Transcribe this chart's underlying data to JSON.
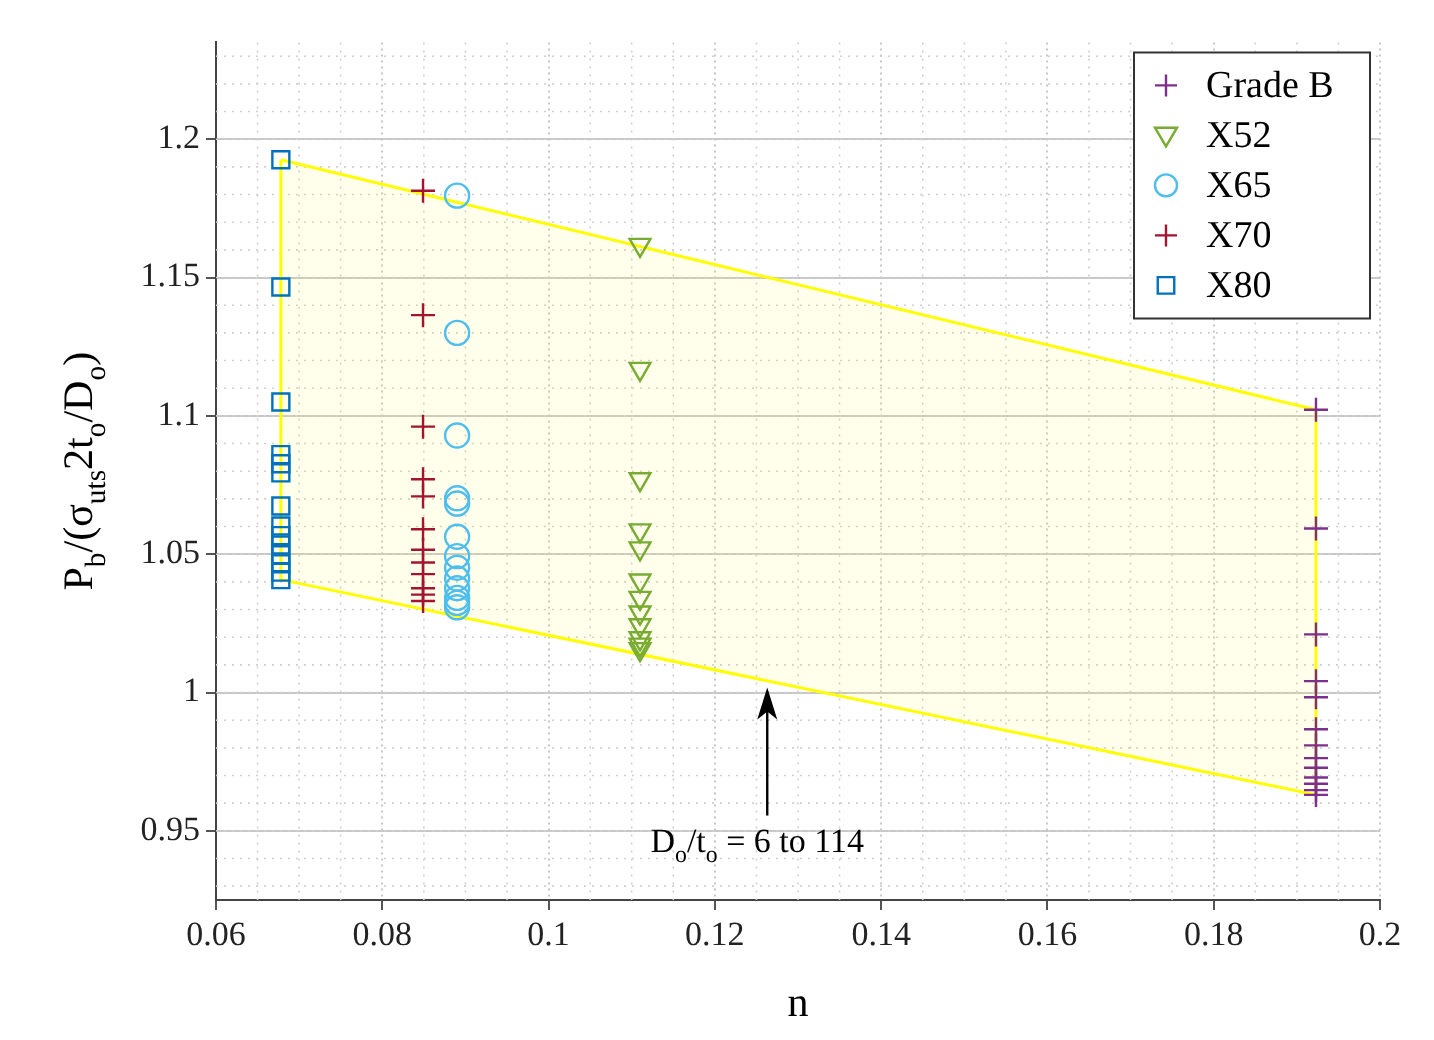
{
  "chart_data": {
    "type": "scatter",
    "xlabel": "n",
    "ylabel": "P$_{b}$/(σ$_{uts}$2t$_{o}$/D$_{o}$)",
    "xlim": [
      0.06,
      0.2
    ],
    "xticks": [
      0.06,
      0.08,
      0.1,
      0.12,
      0.14,
      0.16,
      0.18,
      0.2
    ],
    "ylim": [
      0.925,
      1.235
    ],
    "yticks": [
      0.95,
      1,
      1.05,
      1.1,
      1.15,
      1.2
    ],
    "grid": true,
    "legend": "top right",
    "annotations": [
      {
        "text": "D$_{o}$/t$_{o}$ = 6 to 114",
        "x": 0.1263,
        "y": 1.0018
      }
    ],
    "series": [
      {
        "type": "area",
        "color": "#ffff00",
        "x": [
          0.0678,
          0.1923,
          0.1923,
          0.0678,
          0.0678
        ],
        "values": [
          1.1926,
          1.1022,
          0.963,
          1.0408,
          1.1926
        ]
      },
      {
        "name": "Grade B",
        "color": "#7e2f8e",
        "marker": "cross",
        "x": [
          0.1923,
          0.1923,
          0.1923,
          0.1923,
          0.1923,
          0.1923,
          0.1923,
          0.1923,
          0.1923,
          0.1923,
          0.1923,
          0.1923,
          0.1923
        ],
        "values": [
          1.1022,
          1.0593,
          1.021,
          1.0041,
          0.9983,
          0.9867,
          0.9809,
          0.9763,
          0.9728,
          0.9693,
          0.967,
          0.9647,
          0.963
        ]
      },
      {
        "name": "X52",
        "color": "#77ac30",
        "marker": "triangle",
        "x": [
          0.111,
          0.111,
          0.111,
          0.111,
          0.111,
          0.111,
          0.111,
          0.111,
          0.111,
          0.111,
          0.111,
          0.111
        ],
        "values": [
          1.1618,
          1.117,
          1.0771,
          1.0586,
          1.0521,
          1.0405,
          1.0342,
          1.0289,
          1.0243,
          1.0196,
          1.0173,
          1.0157
        ]
      },
      {
        "name": "X65",
        "color": "#4dbeee",
        "marker": "circle",
        "x": [
          0.089,
          0.089,
          0.089,
          0.089,
          0.089,
          0.089,
          0.089,
          0.089,
          0.089,
          0.089,
          0.089,
          0.089,
          0.089
        ],
        "values": [
          1.1796,
          1.13,
          1.0929,
          1.0702,
          1.0683,
          1.0563,
          1.0493,
          1.0451,
          1.0412,
          1.0377,
          1.0342,
          1.0324,
          1.0308
        ]
      },
      {
        "name": "X70",
        "color": "#a2142f",
        "marker": "cross",
        "x": [
          0.0849,
          0.0849,
          0.0849,
          0.0849,
          0.0849,
          0.0849,
          0.0849,
          0.0849,
          0.0849,
          0.0849,
          0.0849,
          0.0849
        ],
        "values": [
          1.1814,
          1.1364,
          1.0961,
          1.0771,
          1.0709,
          1.059,
          1.0516,
          1.047,
          1.0428,
          1.0377,
          1.0354,
          1.0331
        ]
      },
      {
        "name": "X80",
        "color": "#0072bd",
        "marker": "square",
        "x": [
          0.0678,
          0.0678,
          0.0678,
          0.0678,
          0.0678,
          0.0678,
          0.0678,
          0.0678,
          0.0678,
          0.0678,
          0.0678,
          0.0678,
          0.0678,
          0.0678
        ],
        "values": [
          1.1926,
          1.1466,
          1.105,
          1.086,
          1.0827,
          1.0794,
          1.0674,
          1.0602,
          1.0567,
          1.0533,
          1.0498,
          1.0465,
          1.0435,
          1.0408
        ]
      }
    ]
  }
}
